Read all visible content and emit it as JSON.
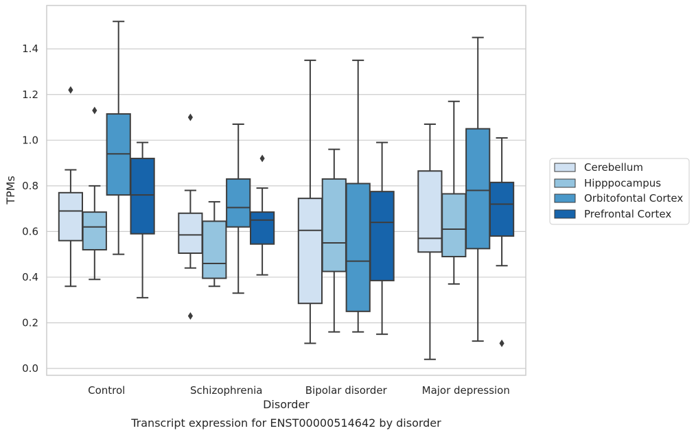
{
  "chart_data": {
    "type": "box",
    "xlabel": "Disorder",
    "ylabel": "TPMs",
    "caption": "Transcript expression for ENST00000514642 by disorder",
    "categories": [
      "Control",
      "Schizophrenia",
      "Bipolar disorder",
      "Major depression"
    ],
    "ylim": [
      -0.03,
      1.59
    ],
    "yticks": [
      0.0,
      0.2,
      0.4,
      0.6,
      0.8,
      1.0,
      1.2,
      1.4
    ],
    "ytick_labels": [
      "0.0",
      "0.2",
      "0.4",
      "0.6",
      "0.8",
      "1.0",
      "1.2",
      "1.4"
    ],
    "grid": "horizontal",
    "legend_placement": "outside-right",
    "series": [
      {
        "name": "Cerebellum",
        "color": "#d0e1f2",
        "boxes": [
          {
            "whisker_low": 0.36,
            "q1": 0.56,
            "median": 0.69,
            "q3": 0.77,
            "whisker_high": 0.87,
            "outliers": [
              1.22
            ]
          },
          {
            "whisker_low": 0.44,
            "q1": 0.505,
            "median": 0.585,
            "q3": 0.68,
            "whisker_high": 0.78,
            "outliers": [
              1.1,
              0.23
            ]
          },
          {
            "whisker_low": 0.11,
            "q1": 0.285,
            "median": 0.605,
            "q3": 0.745,
            "whisker_high": 1.35,
            "outliers": []
          },
          {
            "whisker_low": 0.04,
            "q1": 0.51,
            "median": 0.57,
            "q3": 0.865,
            "whisker_high": 1.07,
            "outliers": []
          }
        ]
      },
      {
        "name": "Hipppocampus",
        "color": "#94c4df",
        "boxes": [
          {
            "whisker_low": 0.39,
            "q1": 0.52,
            "median": 0.62,
            "q3": 0.685,
            "whisker_high": 0.8,
            "outliers": [
              1.13
            ]
          },
          {
            "whisker_low": 0.36,
            "q1": 0.395,
            "median": 0.46,
            "q3": 0.645,
            "whisker_high": 0.73,
            "outliers": []
          },
          {
            "whisker_low": 0.16,
            "q1": 0.425,
            "median": 0.55,
            "q3": 0.83,
            "whisker_high": 0.96,
            "outliers": []
          },
          {
            "whisker_low": 0.37,
            "q1": 0.49,
            "median": 0.61,
            "q3": 0.765,
            "whisker_high": 1.17,
            "outliers": []
          }
        ]
      },
      {
        "name": "Orbitofontal Cortex",
        "color": "#4a98c9",
        "boxes": [
          {
            "whisker_low": 0.5,
            "q1": 0.76,
            "median": 0.94,
            "q3": 1.115,
            "whisker_high": 1.52,
            "outliers": []
          },
          {
            "whisker_low": 0.33,
            "q1": 0.62,
            "median": 0.705,
            "q3": 0.83,
            "whisker_high": 1.07,
            "outliers": []
          },
          {
            "whisker_low": 0.16,
            "q1": 0.25,
            "median": 0.47,
            "q3": 0.81,
            "whisker_high": 1.35,
            "outliers": []
          },
          {
            "whisker_low": 0.12,
            "q1": 0.525,
            "median": 0.78,
            "q3": 1.05,
            "whisker_high": 1.45,
            "outliers": []
          }
        ]
      },
      {
        "name": "Prefrontal Cortex",
        "color": "#1764ab",
        "boxes": [
          {
            "whisker_low": 0.31,
            "q1": 0.59,
            "median": 0.76,
            "q3": 0.92,
            "whisker_high": 0.99,
            "outliers": []
          },
          {
            "whisker_low": 0.41,
            "q1": 0.545,
            "median": 0.65,
            "q3": 0.685,
            "whisker_high": 0.79,
            "outliers": [
              0.92
            ]
          },
          {
            "whisker_low": 0.15,
            "q1": 0.385,
            "median": 0.64,
            "q3": 0.775,
            "whisker_high": 0.99,
            "outliers": []
          },
          {
            "whisker_low": 0.45,
            "q1": 0.58,
            "median": 0.72,
            "q3": 0.815,
            "whisker_high": 1.01,
            "outliers": [
              0.11
            ]
          }
        ]
      }
    ]
  }
}
